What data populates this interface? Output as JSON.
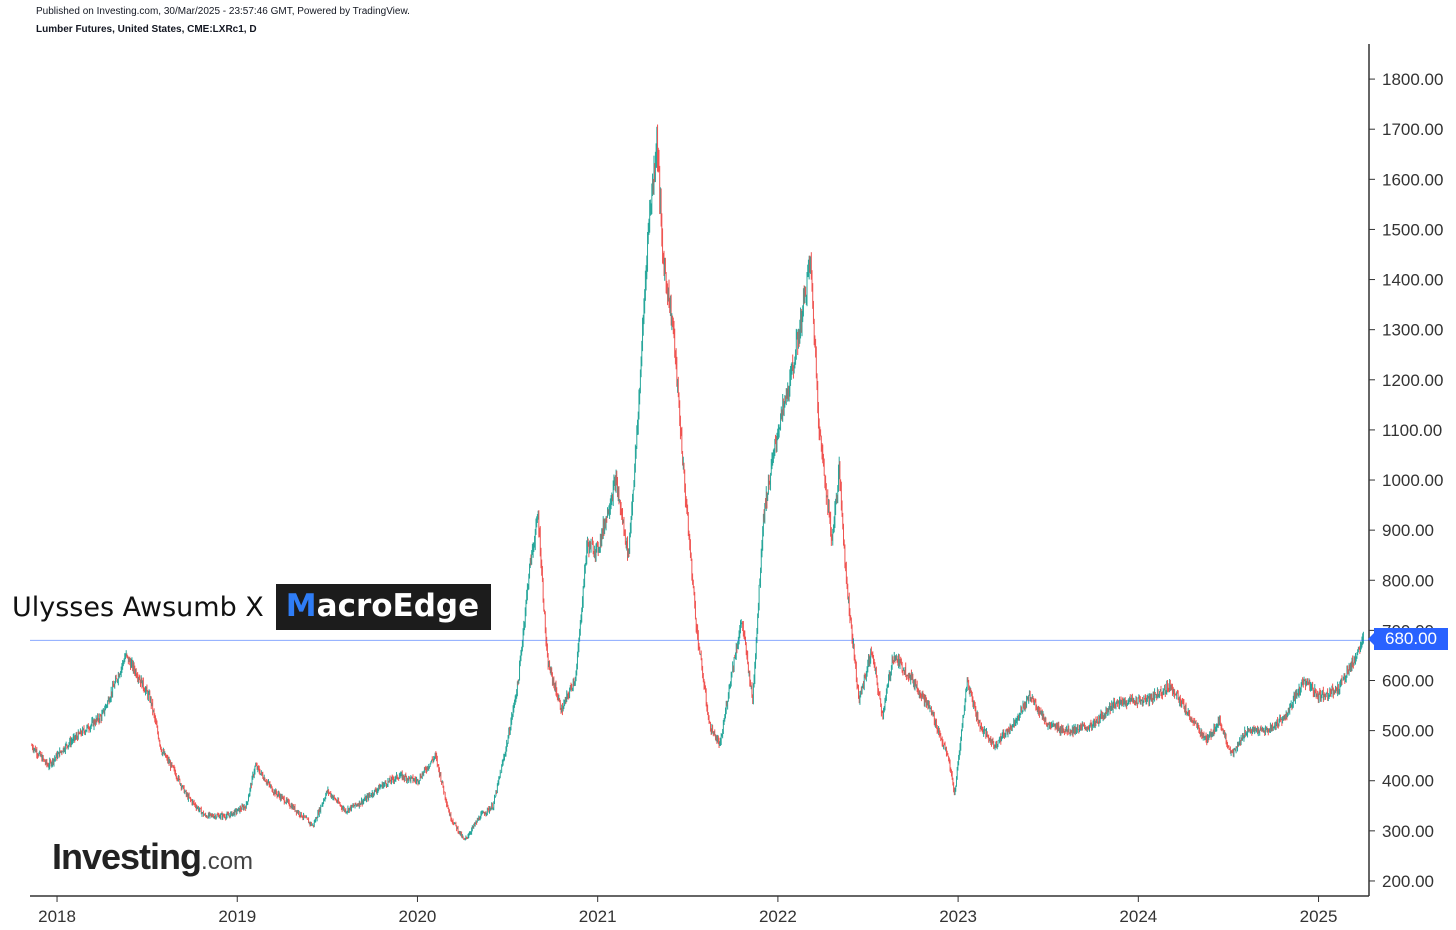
{
  "header": {
    "published": "Published on Investing.com, 30/Mar/2025 - 23:57:46 GMT, Powered by TradingView.",
    "symbol": "Lumber Futures, United States, CME:LXRc1, D"
  },
  "watermark": {
    "credit": "Ulysses Awsumb X",
    "badge_first": "M",
    "badge_rest": "acroEdge",
    "badge_accent": "#2f7df6"
  },
  "logo": {
    "main": "Investing",
    "suffix": ".com"
  },
  "colors": {
    "up": "#26a69a",
    "down": "#ef5350",
    "price_line": "#2962ff"
  },
  "chart_data": {
    "type": "candlestick",
    "title": "Lumber Futures, United States, CME:LXRc1, D",
    "xlabel": "",
    "ylabel": "",
    "ylim": [
      170,
      1870
    ],
    "xlim": [
      2017.85,
      2025.28
    ],
    "y_ticks": [
      200,
      300,
      400,
      500,
      600,
      700,
      800,
      900,
      1000,
      1100,
      1200,
      1300,
      1400,
      1500,
      1600,
      1700,
      1800
    ],
    "y_tick_labels": [
      "200.00",
      "300.00",
      "400.00",
      "500.00",
      "600.00",
      "700.00",
      "800.00",
      "900.00",
      "1000.00",
      "1100.00",
      "1200.00",
      "1300.00",
      "1400.00",
      "1500.00",
      "1600.00",
      "1700.00",
      "1800.00"
    ],
    "x_ticks": [
      2018,
      2019,
      2020,
      2021,
      2022,
      2023,
      2024,
      2025
    ],
    "x_tick_labels": [
      "2018",
      "2019",
      "2020",
      "2021",
      "2022",
      "2023",
      "2024",
      "2025"
    ],
    "last_price": 680.0,
    "last_price_label": "680.00",
    "price_path": [
      [
        2017.86,
        470
      ],
      [
        2017.95,
        430
      ],
      [
        2018.05,
        470
      ],
      [
        2018.15,
        500
      ],
      [
        2018.25,
        530
      ],
      [
        2018.35,
        620
      ],
      [
        2018.38,
        650
      ],
      [
        2018.45,
        610
      ],
      [
        2018.52,
        560
      ],
      [
        2018.58,
        460
      ],
      [
        2018.65,
        420
      ],
      [
        2018.72,
        370
      ],
      [
        2018.82,
        330
      ],
      [
        2018.95,
        330
      ],
      [
        2019.05,
        350
      ],
      [
        2019.1,
        430
      ],
      [
        2019.2,
        380
      ],
      [
        2019.3,
        350
      ],
      [
        2019.42,
        310
      ],
      [
        2019.5,
        380
      ],
      [
        2019.6,
        340
      ],
      [
        2019.7,
        360
      ],
      [
        2019.8,
        390
      ],
      [
        2019.9,
        410
      ],
      [
        2020.0,
        400
      ],
      [
        2020.1,
        450
      ],
      [
        2020.18,
        330
      ],
      [
        2020.26,
        280
      ],
      [
        2020.35,
        330
      ],
      [
        2020.42,
        350
      ],
      [
        2020.5,
        480
      ],
      [
        2020.56,
        600
      ],
      [
        2020.62,
        820
      ],
      [
        2020.67,
        930
      ],
      [
        2020.72,
        640
      ],
      [
        2020.8,
        540
      ],
      [
        2020.88,
        610
      ],
      [
        2020.94,
        870
      ],
      [
        2021.0,
        860
      ],
      [
        2021.1,
        1000
      ],
      [
        2021.17,
        850
      ],
      [
        2021.22,
        1100
      ],
      [
        2021.28,
        1500
      ],
      [
        2021.33,
        1680
      ],
      [
        2021.36,
        1450
      ],
      [
        2021.42,
        1300
      ],
      [
        2021.48,
        1000
      ],
      [
        2021.55,
        700
      ],
      [
        2021.62,
        510
      ],
      [
        2021.68,
        470
      ],
      [
        2021.74,
        610
      ],
      [
        2021.8,
        720
      ],
      [
        2021.86,
        560
      ],
      [
        2021.92,
        930
      ],
      [
        2022.0,
        1100
      ],
      [
        2022.07,
        1200
      ],
      [
        2022.12,
        1300
      ],
      [
        2022.18,
        1440
      ],
      [
        2022.23,
        1100
      ],
      [
        2022.3,
        880
      ],
      [
        2022.34,
        1020
      ],
      [
        2022.38,
        800
      ],
      [
        2022.45,
        560
      ],
      [
        2022.52,
        660
      ],
      [
        2022.58,
        530
      ],
      [
        2022.64,
        650
      ],
      [
        2022.75,
        600
      ],
      [
        2022.85,
        540
      ],
      [
        2022.95,
        440
      ],
      [
        2022.98,
        370
      ],
      [
        2023.05,
        600
      ],
      [
        2023.12,
        510
      ],
      [
        2023.2,
        470
      ],
      [
        2023.3,
        510
      ],
      [
        2023.4,
        570
      ],
      [
        2023.5,
        510
      ],
      [
        2023.62,
        500
      ],
      [
        2023.75,
        510
      ],
      [
        2023.85,
        550
      ],
      [
        2023.95,
        560
      ],
      [
        2024.05,
        560
      ],
      [
        2024.18,
        590
      ],
      [
        2024.28,
        530
      ],
      [
        2024.38,
        480
      ],
      [
        2024.45,
        520
      ],
      [
        2024.52,
        450
      ],
      [
        2024.6,
        500
      ],
      [
        2024.72,
        500
      ],
      [
        2024.82,
        530
      ],
      [
        2024.92,
        600
      ],
      [
        2025.0,
        570
      ],
      [
        2025.1,
        580
      ],
      [
        2025.18,
        630
      ],
      [
        2025.25,
        680
      ]
    ]
  }
}
